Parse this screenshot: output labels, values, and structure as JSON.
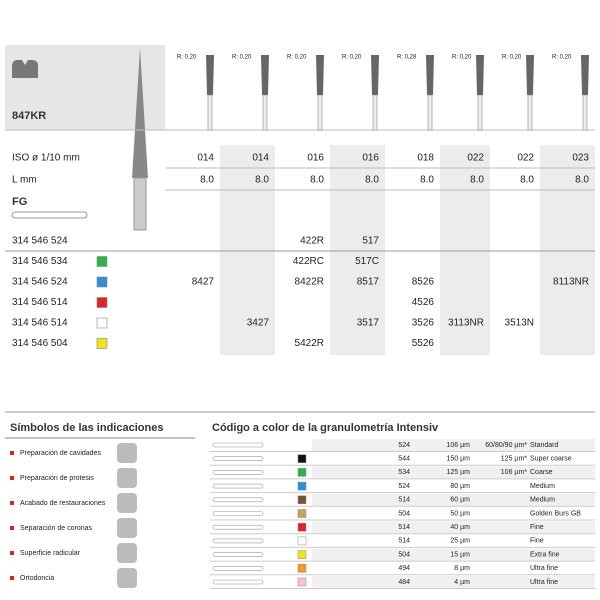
{
  "product": {
    "name": "847KR",
    "shank": "FG"
  },
  "radii": [
    "R: 0,20",
    "R: 0,20",
    "R: 0,20",
    "R: 0,20",
    "R: 0,28",
    "R: 0,20",
    "R: 0,20",
    "R: 0,20"
  ],
  "iso": {
    "label": "ISO ø 1/10 mm",
    "values": [
      "014",
      "014",
      "016",
      "016",
      "018",
      "022",
      "022",
      "023"
    ]
  },
  "length": {
    "label": "L mm",
    "values": [
      "8.0",
      "8.0",
      "8.0",
      "8.0",
      "8.0",
      "8.0",
      "8.0",
      "8.0"
    ]
  },
  "rows": [
    {
      "ref": "314 546 524",
      "color": null,
      "cells": [
        null,
        null,
        "422R",
        "517",
        null,
        null,
        null,
        null
      ]
    },
    {
      "ref": "314 546 534",
      "color": "#2db34a",
      "cells": [
        null,
        null,
        "422RC",
        "517C",
        null,
        null,
        null,
        null
      ]
    },
    {
      "ref": "314 546 524",
      "color": "#2f8fd8",
      "cells": [
        "8427",
        null,
        "8422R",
        "8517",
        "8526",
        null,
        null,
        "8113NR"
      ]
    },
    {
      "ref": "314 546 514",
      "color": "#e2232a",
      "cells": [
        null,
        null,
        null,
        null,
        "4526",
        null,
        null,
        null
      ]
    },
    {
      "ref": "314 546 514",
      "color": "#ffffff",
      "cells": [
        null,
        "3427",
        null,
        "3517",
        "3526",
        "3113NR",
        "3513N",
        null
      ]
    },
    {
      "ref": "314 546 504",
      "color": "#f2e21c",
      "cells": [
        null,
        null,
        "5422R",
        null,
        "5526",
        null,
        null,
        null
      ]
    }
  ],
  "indications": {
    "title": "Símbolos de las indicaciones",
    "items": [
      "Preparación de cavidades",
      "Preparación de protesis",
      "Acabado de restauraciones",
      "Separación de coronas",
      "Superficie radicular",
      "Ortodoncia"
    ]
  },
  "granulometry": {
    "title": "Código a color de la granulometría Intensiv",
    "rows": [
      {
        "code": "524",
        "grit": "106 µm",
        "note": "60/80/90 µm*",
        "label": "Standard",
        "color": null
      },
      {
        "code": "544",
        "grit": "150 µm",
        "note": "125 µm*",
        "label": "Super coarse",
        "color": "#111111"
      },
      {
        "code": "534",
        "grit": "125 µm",
        "note": "106 µm*",
        "label": "Coarse",
        "color": "#2db34a"
      },
      {
        "code": "524",
        "grit": "80 µm",
        "note": null,
        "label": "Medium",
        "color": "#2f8fd8"
      },
      {
        "code": "514",
        "grit": "60 µm",
        "note": null,
        "label": "Medium",
        "color": "#7a5230"
      },
      {
        "code": "504",
        "grit": "50 µm",
        "note": null,
        "label": "Golden Burs GB",
        "color": "#c9a35a"
      },
      {
        "code": "514",
        "grit": "40 µm",
        "note": null,
        "label": "Fine",
        "color": "#e2232a"
      },
      {
        "code": "514",
        "grit": "25 µm",
        "note": null,
        "label": "Fine",
        "color": "#ffffff"
      },
      {
        "code": "504",
        "grit": "15 µm",
        "note": null,
        "label": "Extra fine",
        "color": "#f2e21c"
      },
      {
        "code": "494",
        "grit": "8 µm",
        "note": null,
        "label": "Ultra fine",
        "color": "#f39a2b"
      },
      {
        "code": "484",
        "grit": "4 µm",
        "note": null,
        "label": "Ultra fine",
        "color": "#f6c3cf"
      }
    ]
  }
}
